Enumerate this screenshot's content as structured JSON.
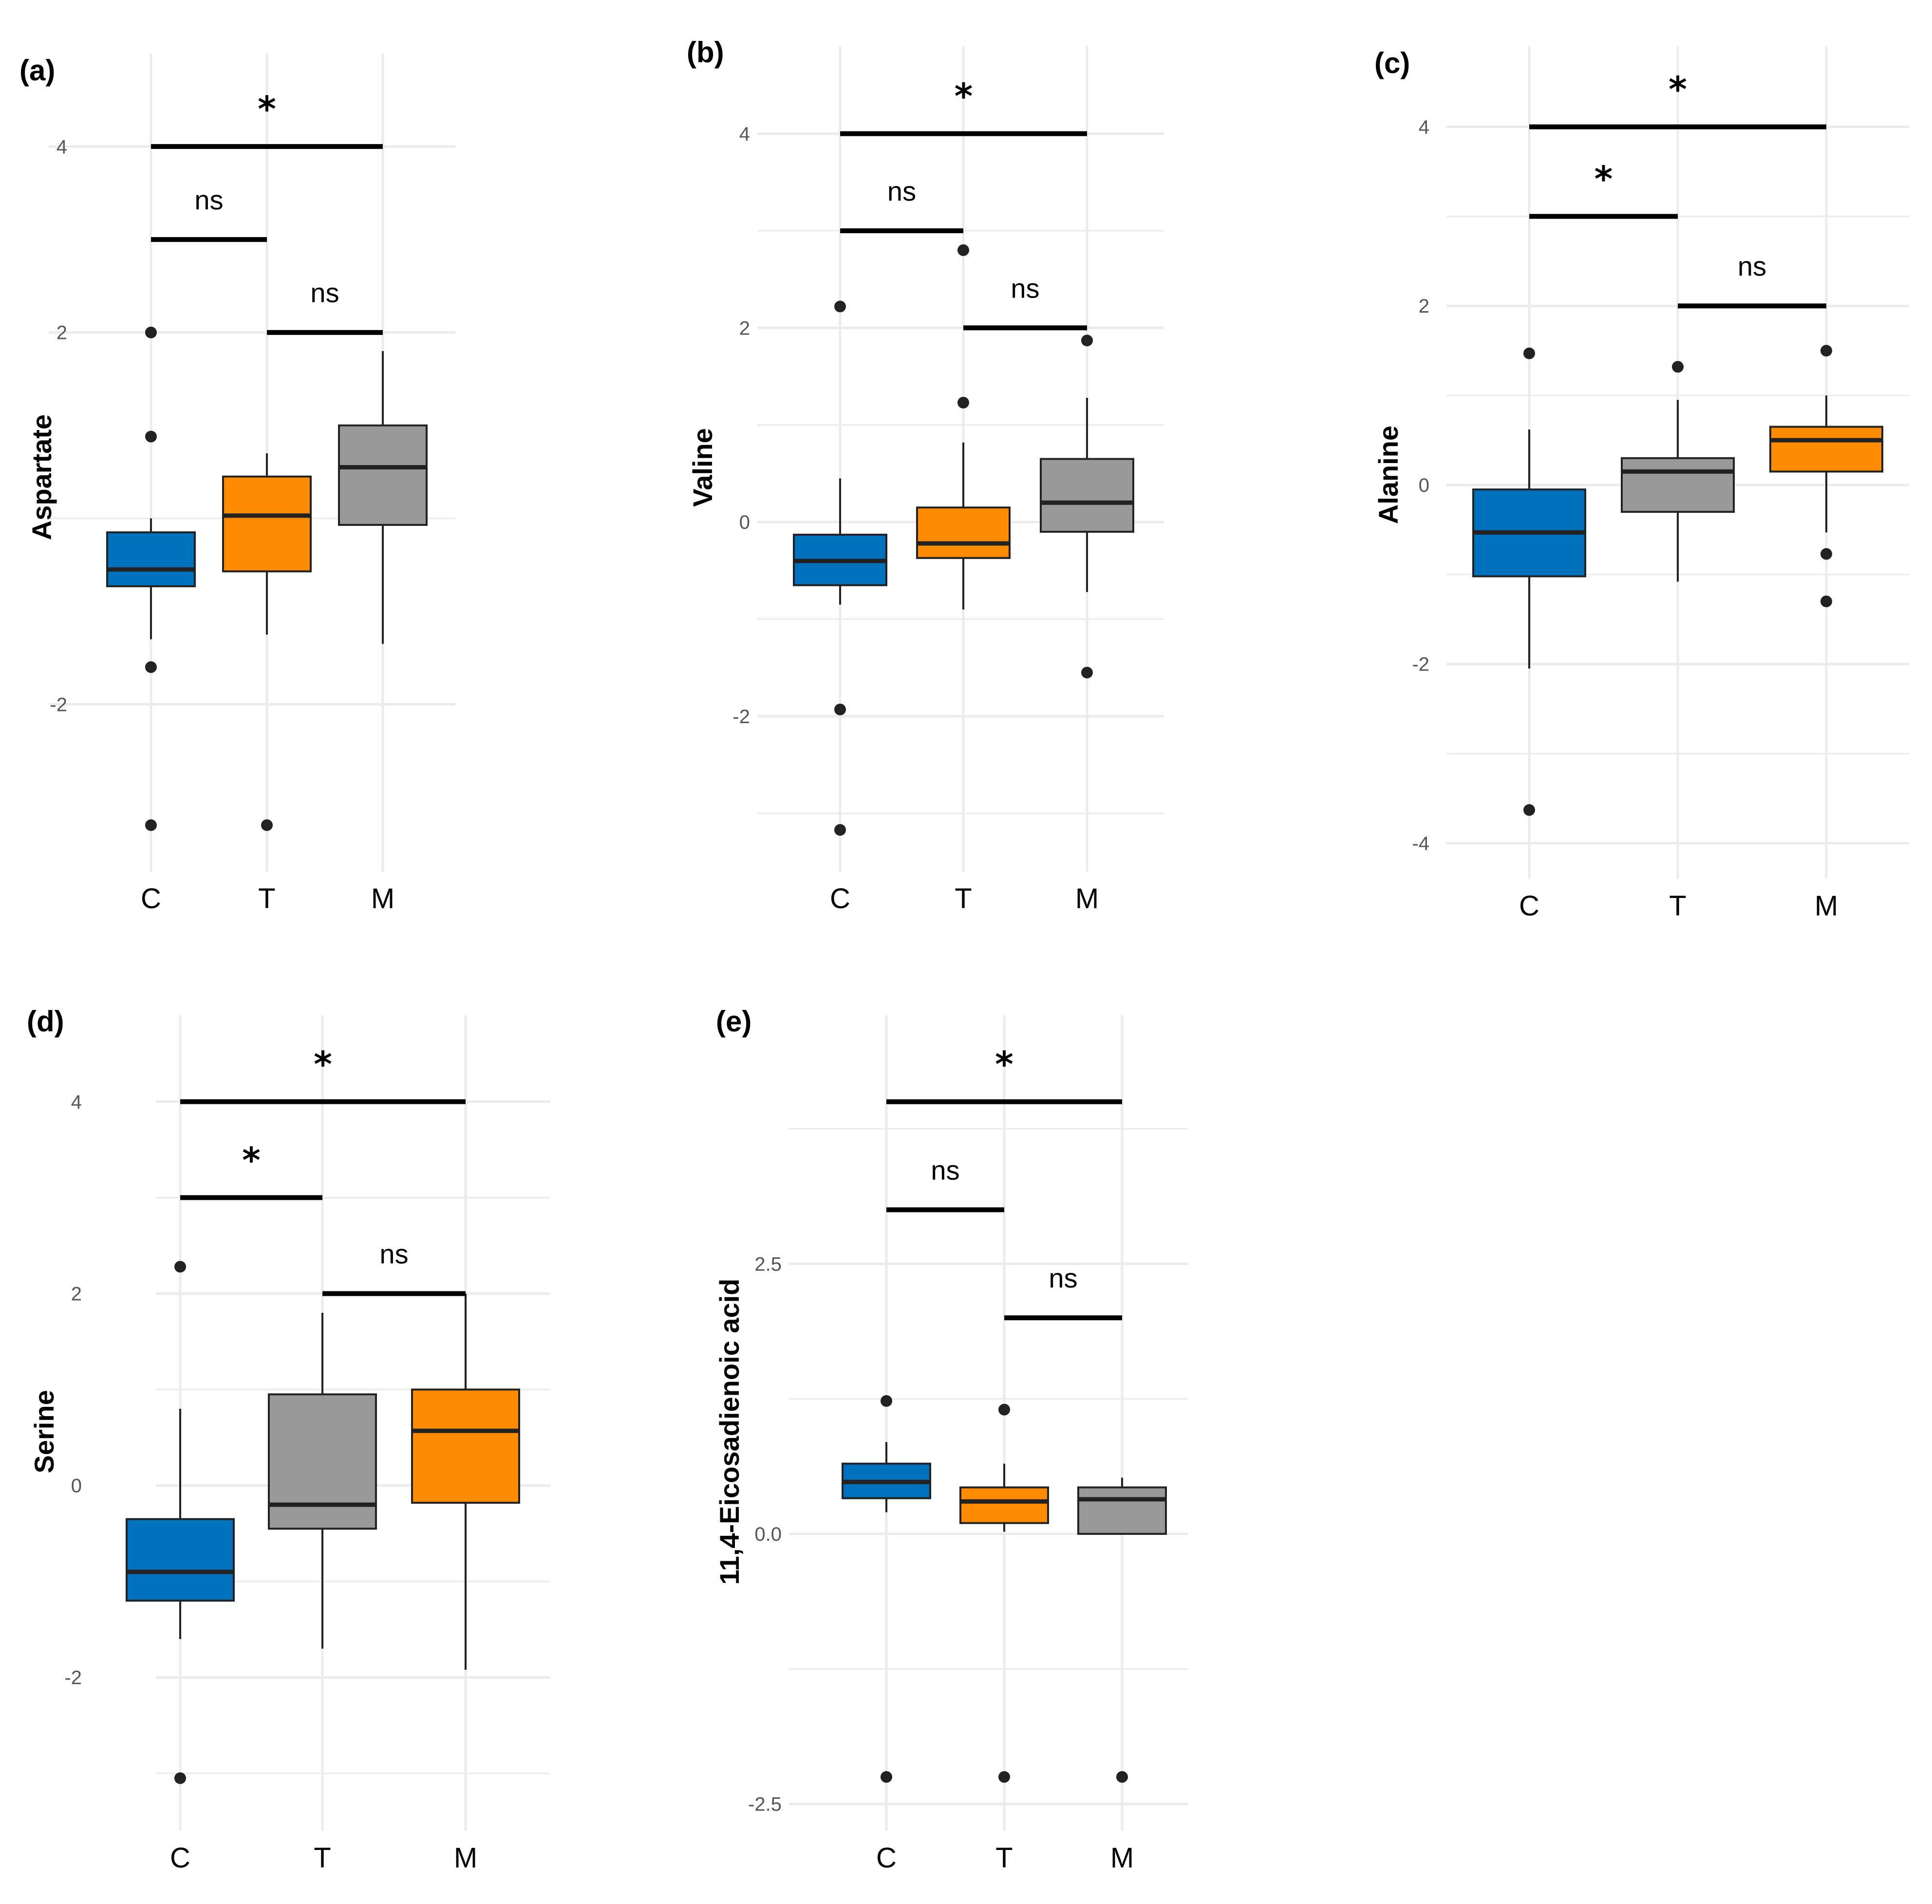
{
  "colors": {
    "C_box": "#0072BD",
    "orange": "#FF8C00",
    "gray": "#999999",
    "grid": "#ebebeb",
    "line": "#222222"
  },
  "chart_data": [
    {
      "panel": "(a)",
      "type": "box",
      "ylabel": "Aspartate",
      "categories": [
        "C",
        "T",
        "M"
      ],
      "yticks": [
        "4",
        "2",
        "-2"
      ],
      "ytick_values": [
        4,
        2,
        -2
      ],
      "ylim": [
        -3.8,
        5.0
      ],
      "boxes": [
        {
          "group": "C",
          "color": "C_box",
          "q1": -0.73,
          "median": -0.55,
          "q3": -0.15,
          "whisker_low": -1.3,
          "whisker_high": 0.0,
          "outliers": [
            2.0,
            0.88,
            -1.6,
            -3.3
          ]
        },
        {
          "group": "T",
          "color": "orange",
          "q1": -0.57,
          "median": 0.03,
          "q3": 0.45,
          "whisker_low": -1.25,
          "whisker_high": 0.7,
          "outliers": [
            -3.3
          ]
        },
        {
          "group": "M",
          "color": "gray",
          "q1": -0.07,
          "median": 0.55,
          "q3": 1.0,
          "whisker_low": -1.35,
          "whisker_high": 1.8,
          "outliers": []
        }
      ],
      "brackets": [
        {
          "from": "C",
          "to": "M",
          "y": 4.0,
          "label": "*"
        },
        {
          "from": "C",
          "to": "T",
          "y": 3.0,
          "label": "ns"
        },
        {
          "from": "T",
          "to": "M",
          "y": 2.0,
          "label": "ns"
        }
      ]
    },
    {
      "panel": "(b)",
      "type": "box",
      "ylabel": "Valine",
      "categories": [
        "C",
        "T",
        "M"
      ],
      "yticks": [
        "4",
        "2",
        "0",
        "-2"
      ],
      "ytick_values": [
        4,
        2,
        0,
        -2
      ],
      "ylim": [
        -3.6,
        4.9
      ],
      "boxes": [
        {
          "group": "C",
          "color": "C_box",
          "q1": -0.65,
          "median": -0.4,
          "q3": -0.13,
          "whisker_low": -0.85,
          "whisker_high": 0.45,
          "outliers": [
            2.22,
            -1.93,
            -3.17
          ]
        },
        {
          "group": "T",
          "color": "orange",
          "q1": -0.37,
          "median": -0.22,
          "q3": 0.15,
          "whisker_low": -0.9,
          "whisker_high": 0.82,
          "outliers": [
            2.8,
            1.23
          ]
        },
        {
          "group": "M",
          "color": "gray",
          "q1": -0.1,
          "median": 0.2,
          "q3": 0.65,
          "whisker_low": -0.72,
          "whisker_high": 1.28,
          "outliers": [
            1.87,
            -1.55
          ]
        }
      ],
      "brackets": [
        {
          "from": "C",
          "to": "M",
          "y": 4.0,
          "label": "*"
        },
        {
          "from": "C",
          "to": "T",
          "y": 3.0,
          "label": "ns"
        },
        {
          "from": "T",
          "to": "M",
          "y": 2.0,
          "label": "ns"
        }
      ]
    },
    {
      "panel": "(c)",
      "type": "box",
      "ylabel": "Alanine",
      "categories": [
        "C",
        "T",
        "M"
      ],
      "yticks": [
        "4",
        "2",
        "0",
        "-2",
        "-4"
      ],
      "ytick_values": [
        4,
        2,
        0,
        -2,
        -4
      ],
      "ylim": [
        -4.4,
        4.9
      ],
      "boxes": [
        {
          "group": "C",
          "color": "C_box",
          "q1": -1.02,
          "median": -0.53,
          "q3": -0.05,
          "whisker_low": -2.05,
          "whisker_high": 0.62,
          "outliers": [
            1.47,
            -3.63
          ]
        },
        {
          "group": "T",
          "color": "gray",
          "q1": -0.3,
          "median": 0.15,
          "q3": 0.3,
          "whisker_low": -1.08,
          "whisker_high": 0.95,
          "outliers": [
            1.32
          ]
        },
        {
          "group": "M",
          "color": "orange",
          "q1": 0.15,
          "median": 0.5,
          "q3": 0.65,
          "whisker_low": -0.53,
          "whisker_high": 1.0,
          "outliers": [
            1.5,
            -0.77,
            -1.3
          ]
        }
      ],
      "brackets": [
        {
          "from": "C",
          "to": "M",
          "y": 4.0,
          "label": "*"
        },
        {
          "from": "C",
          "to": "T",
          "y": 3.0,
          "label": "*"
        },
        {
          "from": "T",
          "to": "M",
          "y": 2.0,
          "label": "ns"
        }
      ]
    },
    {
      "panel": "(d)",
      "type": "box",
      "ylabel": "Serine",
      "categories": [
        "C",
        "T",
        "M"
      ],
      "yticks": [
        "4",
        "2",
        "0",
        "-2"
      ],
      "ytick_values": [
        4,
        2,
        0,
        -2
      ],
      "ylim": [
        -3.6,
        4.9
      ],
      "boxes": [
        {
          "group": "C",
          "color": "C_box",
          "q1": -1.2,
          "median": -0.9,
          "q3": -0.35,
          "whisker_low": -1.6,
          "whisker_high": 0.8,
          "outliers": [
            2.28,
            -3.05
          ]
        },
        {
          "group": "T",
          "color": "gray",
          "q1": -0.45,
          "median": -0.2,
          "q3": 0.95,
          "whisker_low": -1.7,
          "whisker_high": 1.8,
          "outliers": []
        },
        {
          "group": "M",
          "color": "orange",
          "q1": -0.18,
          "median": 0.57,
          "q3": 1.0,
          "whisker_low": -1.92,
          "whisker_high": 2.0,
          "outliers": []
        }
      ],
      "brackets": [
        {
          "from": "C",
          "to": "M",
          "y": 4.0,
          "label": "*"
        },
        {
          "from": "C",
          "to": "T",
          "y": 3.0,
          "label": "*"
        },
        {
          "from": "T",
          "to": "M",
          "y": 2.0,
          "label": "ns"
        }
      ]
    },
    {
      "panel": "(e)",
      "type": "box",
      "ylabel": "11,4-Eicosadienoic acid",
      "categories": [
        "C",
        "T",
        "M"
      ],
      "yticks": [
        "2.5",
        "0.0",
        "-2.5"
      ],
      "ytick_values": [
        2.5,
        0.0,
        -2.5
      ],
      "ylim": [
        -2.75,
        4.8
      ],
      "boxes": [
        {
          "group": "C",
          "color": "C_box",
          "q1": 0.33,
          "median": 0.48,
          "q3": 0.65,
          "whisker_low": 0.2,
          "whisker_high": 0.85,
          "outliers": [
            1.23,
            -2.25
          ]
        },
        {
          "group": "T",
          "color": "orange",
          "q1": 0.1,
          "median": 0.3,
          "q3": 0.43,
          "whisker_low": 0.02,
          "whisker_high": 0.65,
          "outliers": [
            1.15,
            -2.25
          ]
        },
        {
          "group": "M",
          "color": "gray",
          "q1": 0.0,
          "median": 0.32,
          "q3": 0.43,
          "whisker_low": 0.0,
          "whisker_high": 0.52,
          "outliers": [
            -2.25
          ]
        }
      ],
      "brackets": [
        {
          "from": "C",
          "to": "M",
          "y": 4.0,
          "label": "*"
        },
        {
          "from": "C",
          "to": "T",
          "y": 3.0,
          "label": "ns"
        },
        {
          "from": "T",
          "to": "M",
          "y": 2.0,
          "label": "ns"
        }
      ]
    }
  ]
}
